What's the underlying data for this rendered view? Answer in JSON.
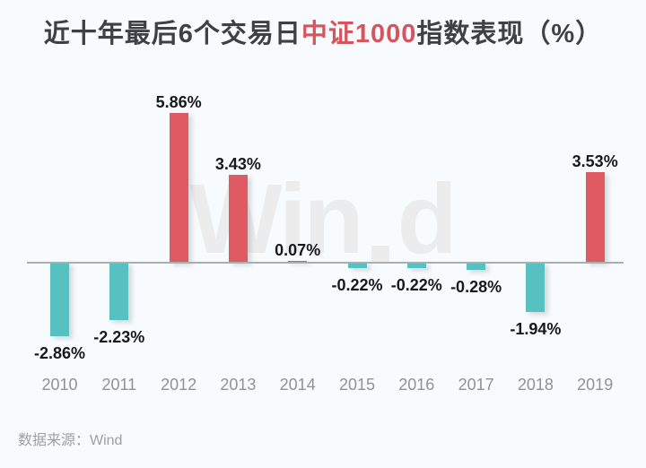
{
  "page": {
    "background": "#f8fbfd"
  },
  "title": {
    "prefix": "近十年最后6个交易日",
    "highlight": "中证1000",
    "suffix": "指数表现（%）",
    "text_color": "#3c4145",
    "highlight_color": "#d6545e"
  },
  "watermark": {
    "left": "Win",
    "right": "d",
    "color": "#ececec"
  },
  "source_note": "数据来源：Wind",
  "source_color": "#9aa0a5",
  "chart_data": {
    "type": "bar",
    "title": "近十年最后6个交易日中证1000指数表现（%）",
    "categories": [
      "2010",
      "2011",
      "2012",
      "2013",
      "2014",
      "2015",
      "2016",
      "2017",
      "2018",
      "2019"
    ],
    "values": [
      -2.86,
      -2.23,
      5.86,
      3.43,
      0.07,
      -0.22,
      -0.22,
      -0.28,
      -1.94,
      3.53
    ],
    "labels": [
      "-2.86%",
      "-2.23%",
      "5.86%",
      "3.43%",
      "0.07%",
      "-0.22%",
      "-0.22%",
      "-0.28%",
      "-1.94%",
      "3.53%"
    ],
    "xlabel": "",
    "ylabel": "",
    "ylim": [
      -3.5,
      6.5
    ],
    "grid": false,
    "legend": false,
    "positive_color": "#e05a63",
    "negative_color": "#57c1c2",
    "axis_line_color": "#a9aeae",
    "value_label_color": "#17191b",
    "category_label_color": "#8d9398"
  }
}
